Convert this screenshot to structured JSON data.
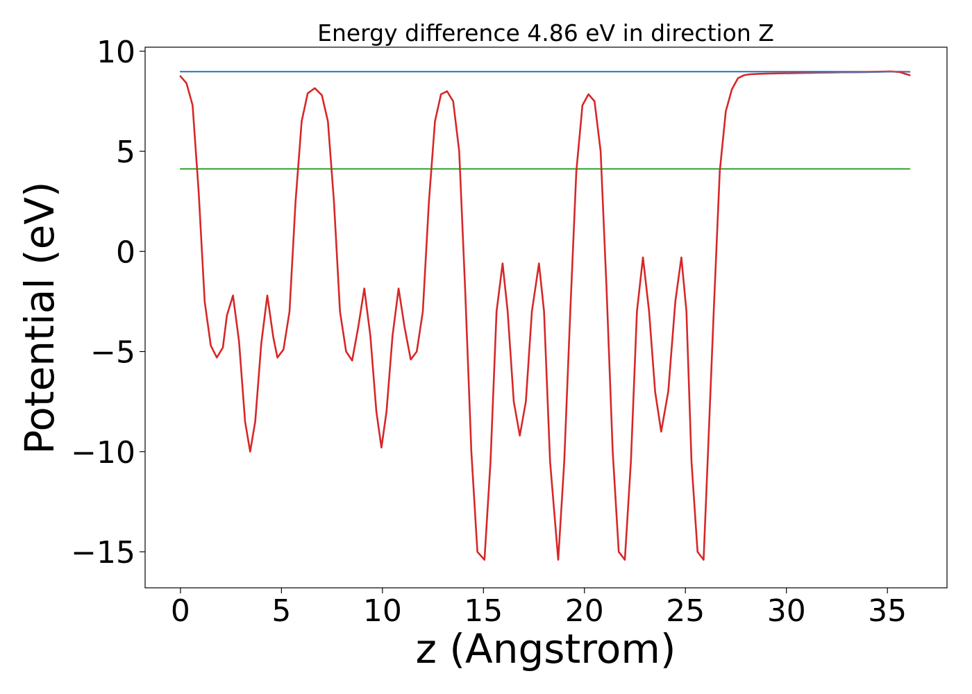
{
  "chart_data": {
    "type": "line",
    "title": "Energy difference 4.86 eV in direction Z",
    "xlabel": "z (Angstrom)",
    "ylabel": "Potential (eV)",
    "xlim": [
      -1.75,
      37.95
    ],
    "ylim": [
      -16.8,
      10.2
    ],
    "xticks": [
      0,
      5,
      10,
      15,
      20,
      25,
      30,
      35
    ],
    "xtick_labels": [
      "0",
      "5",
      "10",
      "15",
      "20",
      "25",
      "30",
      "35"
    ],
    "yticks": [
      10,
      5,
      0,
      -5,
      -10,
      -15
    ],
    "ytick_labels": [
      "10",
      "5",
      "0",
      "−5",
      "−10",
      "−15"
    ],
    "grid": false,
    "series": [
      {
        "color": "#1f77b4",
        "x": [
          0,
          36.1
        ],
        "y": [
          8.98,
          8.98
        ]
      },
      {
        "color": "#2ca02c",
        "x": [
          0,
          36.1
        ],
        "y": [
          4.12,
          4.12
        ]
      },
      {
        "color": "#d62728",
        "x": [
          0,
          0.3,
          0.6,
          0.9,
          1.2,
          1.5,
          1.8,
          2.1,
          2.3,
          2.6,
          2.9,
          3.2,
          3.45,
          3.7,
          4.0,
          4.3,
          4.6,
          4.8,
          5.1,
          5.4,
          5.7,
          6.0,
          6.3,
          6.65,
          7.0,
          7.3,
          7.6,
          7.9,
          8.2,
          8.5,
          8.8,
          9.1,
          9.4,
          9.7,
          9.95,
          10.2,
          10.5,
          10.8,
          11.1,
          11.4,
          11.7,
          12.0,
          12.3,
          12.6,
          12.9,
          13.2,
          13.5,
          13.8,
          14.1,
          14.4,
          14.7,
          15.05,
          15.35,
          15.65,
          15.95,
          16.2,
          16.5,
          16.8,
          17.1,
          17.4,
          17.75,
          18.0,
          18.3,
          18.7,
          19.0,
          19.3,
          19.6,
          19.9,
          20.2,
          20.5,
          20.8,
          21.1,
          21.4,
          21.7,
          22.0,
          22.3,
          22.6,
          22.9,
          23.2,
          23.5,
          23.8,
          24.15,
          24.5,
          24.8,
          25.05,
          25.3,
          25.6,
          25.9,
          26.1,
          26.4,
          26.7,
          27.0,
          27.3,
          27.6,
          27.9,
          28.2,
          28.6,
          29.0,
          30.0,
          31.0,
          32.0,
          33.0,
          34.0,
          34.7,
          35.2,
          35.6,
          36.1
        ],
        "y": [
          8.75,
          8.4,
          7.3,
          3.0,
          -2.5,
          -4.7,
          -5.3,
          -4.8,
          -3.2,
          -2.2,
          -4.5,
          -8.5,
          -10.0,
          -8.5,
          -4.6,
          -2.2,
          -4.3,
          -5.3,
          -4.9,
          -3.0,
          2.5,
          6.5,
          7.9,
          8.15,
          7.8,
          6.5,
          2.5,
          -3.0,
          -5.0,
          -5.45,
          -3.8,
          -1.85,
          -4.2,
          -8.0,
          -9.8,
          -8.0,
          -4.2,
          -1.85,
          -3.8,
          -5.4,
          -5.0,
          -3.0,
          2.5,
          6.5,
          7.85,
          8.0,
          7.5,
          5.0,
          -2.0,
          -10.0,
          -15.0,
          -15.4,
          -10.5,
          -3.0,
          -0.6,
          -3.0,
          -7.5,
          -9.2,
          -7.5,
          -3.0,
          -0.6,
          -3.0,
          -10.5,
          -15.4,
          -10.5,
          -3.0,
          4.0,
          7.3,
          7.85,
          7.5,
          5.0,
          -2.0,
          -10.0,
          -15.0,
          -15.4,
          -10.5,
          -3.0,
          -0.3,
          -3.0,
          -7.0,
          -9.0,
          -7.0,
          -2.5,
          -0.3,
          -3.0,
          -10.5,
          -15.0,
          -15.4,
          -10.5,
          -3.0,
          4.0,
          7.0,
          8.1,
          8.65,
          8.8,
          8.85,
          8.87,
          8.88,
          8.9,
          8.92,
          8.94,
          8.95,
          8.96,
          8.98,
          8.99,
          8.96,
          8.8
        ]
      },
      {
        "color": "#6a6fa8",
        "x": [
          30.0,
          31.0,
          32.0,
          33.0,
          34.0,
          34.7,
          35.2,
          35.6,
          36.1
        ],
        "y": [
          8.88,
          8.9,
          8.92,
          8.94,
          8.95,
          8.96,
          8.98,
          8.99,
          8.96
        ]
      }
    ]
  }
}
